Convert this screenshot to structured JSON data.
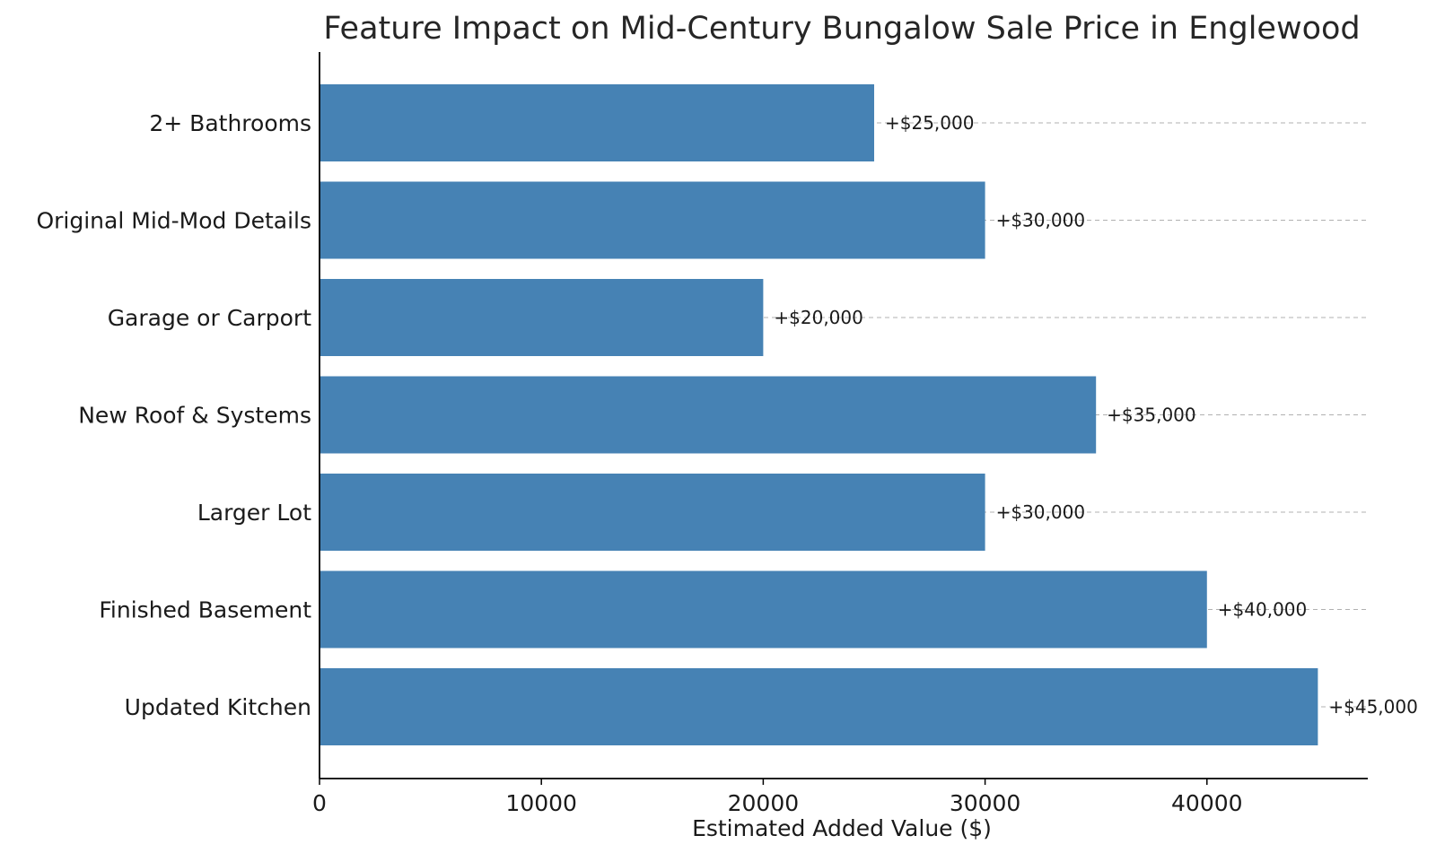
{
  "chart_data": {
    "type": "bar",
    "orientation": "horizontal",
    "title": "Feature Impact on Mid-Century Bungalow Sale Price in Englewood",
    "xlabel": "Estimated Added Value ($)",
    "ylabel": "",
    "categories": [
      "Updated Kitchen",
      "Finished Basement",
      "Larger Lot",
      "New Roof & Systems",
      "Garage or Carport",
      "Original Mid-Mod Details",
      "2+ Bathrooms"
    ],
    "values": [
      45000,
      40000,
      30000,
      35000,
      20000,
      30000,
      25000
    ],
    "data_labels": [
      "+$45,000",
      "+$40,000",
      "+$30,000",
      "+$35,000",
      "+$20,000",
      "+$30,000",
      "+$25,000"
    ],
    "xlim": [
      0,
      47250
    ],
    "xticks": [
      0,
      10000,
      20000,
      30000,
      40000
    ],
    "xtick_labels": [
      "0",
      "10000",
      "20000",
      "30000",
      "40000"
    ],
    "grid": "y-dashed",
    "bar_color": "#4682b4"
  }
}
